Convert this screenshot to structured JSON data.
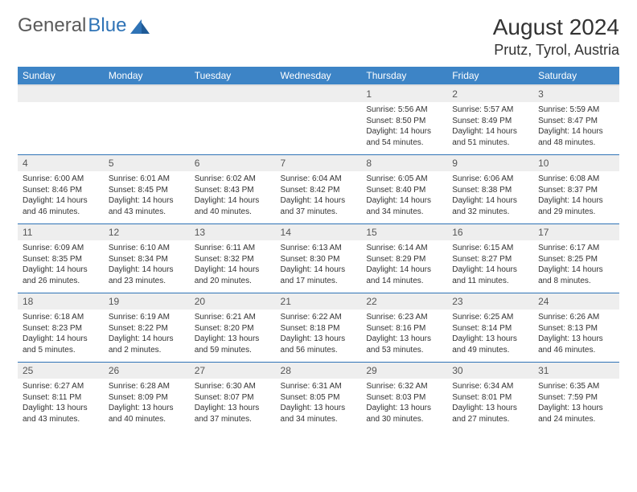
{
  "brand": {
    "part1": "General",
    "part2": "Blue"
  },
  "title": "August 2024",
  "location": "Prutz, Tyrol, Austria",
  "colors": {
    "header_bg": "#3d84c6",
    "header_fg": "#ffffff",
    "rule": "#2f73b6",
    "daynum_bg": "#eeeeee",
    "text": "#333333",
    "logo_gray": "#5a5a5a",
    "logo_blue": "#2f73b6"
  },
  "weekdays": [
    "Sunday",
    "Monday",
    "Tuesday",
    "Wednesday",
    "Thursday",
    "Friday",
    "Saturday"
  ],
  "weeks": [
    [
      {
        "n": "",
        "sr": "",
        "ss": "",
        "dl": ""
      },
      {
        "n": "",
        "sr": "",
        "ss": "",
        "dl": ""
      },
      {
        "n": "",
        "sr": "",
        "ss": "",
        "dl": ""
      },
      {
        "n": "",
        "sr": "",
        "ss": "",
        "dl": ""
      },
      {
        "n": "1",
        "sr": "Sunrise: 5:56 AM",
        "ss": "Sunset: 8:50 PM",
        "dl": "Daylight: 14 hours and 54 minutes."
      },
      {
        "n": "2",
        "sr": "Sunrise: 5:57 AM",
        "ss": "Sunset: 8:49 PM",
        "dl": "Daylight: 14 hours and 51 minutes."
      },
      {
        "n": "3",
        "sr": "Sunrise: 5:59 AM",
        "ss": "Sunset: 8:47 PM",
        "dl": "Daylight: 14 hours and 48 minutes."
      }
    ],
    [
      {
        "n": "4",
        "sr": "Sunrise: 6:00 AM",
        "ss": "Sunset: 8:46 PM",
        "dl": "Daylight: 14 hours and 46 minutes."
      },
      {
        "n": "5",
        "sr": "Sunrise: 6:01 AM",
        "ss": "Sunset: 8:45 PM",
        "dl": "Daylight: 14 hours and 43 minutes."
      },
      {
        "n": "6",
        "sr": "Sunrise: 6:02 AM",
        "ss": "Sunset: 8:43 PM",
        "dl": "Daylight: 14 hours and 40 minutes."
      },
      {
        "n": "7",
        "sr": "Sunrise: 6:04 AM",
        "ss": "Sunset: 8:42 PM",
        "dl": "Daylight: 14 hours and 37 minutes."
      },
      {
        "n": "8",
        "sr": "Sunrise: 6:05 AM",
        "ss": "Sunset: 8:40 PM",
        "dl": "Daylight: 14 hours and 34 minutes."
      },
      {
        "n": "9",
        "sr": "Sunrise: 6:06 AM",
        "ss": "Sunset: 8:38 PM",
        "dl": "Daylight: 14 hours and 32 minutes."
      },
      {
        "n": "10",
        "sr": "Sunrise: 6:08 AM",
        "ss": "Sunset: 8:37 PM",
        "dl": "Daylight: 14 hours and 29 minutes."
      }
    ],
    [
      {
        "n": "11",
        "sr": "Sunrise: 6:09 AM",
        "ss": "Sunset: 8:35 PM",
        "dl": "Daylight: 14 hours and 26 minutes."
      },
      {
        "n": "12",
        "sr": "Sunrise: 6:10 AM",
        "ss": "Sunset: 8:34 PM",
        "dl": "Daylight: 14 hours and 23 minutes."
      },
      {
        "n": "13",
        "sr": "Sunrise: 6:11 AM",
        "ss": "Sunset: 8:32 PM",
        "dl": "Daylight: 14 hours and 20 minutes."
      },
      {
        "n": "14",
        "sr": "Sunrise: 6:13 AM",
        "ss": "Sunset: 8:30 PM",
        "dl": "Daylight: 14 hours and 17 minutes."
      },
      {
        "n": "15",
        "sr": "Sunrise: 6:14 AM",
        "ss": "Sunset: 8:29 PM",
        "dl": "Daylight: 14 hours and 14 minutes."
      },
      {
        "n": "16",
        "sr": "Sunrise: 6:15 AM",
        "ss": "Sunset: 8:27 PM",
        "dl": "Daylight: 14 hours and 11 minutes."
      },
      {
        "n": "17",
        "sr": "Sunrise: 6:17 AM",
        "ss": "Sunset: 8:25 PM",
        "dl": "Daylight: 14 hours and 8 minutes."
      }
    ],
    [
      {
        "n": "18",
        "sr": "Sunrise: 6:18 AM",
        "ss": "Sunset: 8:23 PM",
        "dl": "Daylight: 14 hours and 5 minutes."
      },
      {
        "n": "19",
        "sr": "Sunrise: 6:19 AM",
        "ss": "Sunset: 8:22 PM",
        "dl": "Daylight: 14 hours and 2 minutes."
      },
      {
        "n": "20",
        "sr": "Sunrise: 6:21 AM",
        "ss": "Sunset: 8:20 PM",
        "dl": "Daylight: 13 hours and 59 minutes."
      },
      {
        "n": "21",
        "sr": "Sunrise: 6:22 AM",
        "ss": "Sunset: 8:18 PM",
        "dl": "Daylight: 13 hours and 56 minutes."
      },
      {
        "n": "22",
        "sr": "Sunrise: 6:23 AM",
        "ss": "Sunset: 8:16 PM",
        "dl": "Daylight: 13 hours and 53 minutes."
      },
      {
        "n": "23",
        "sr": "Sunrise: 6:25 AM",
        "ss": "Sunset: 8:14 PM",
        "dl": "Daylight: 13 hours and 49 minutes."
      },
      {
        "n": "24",
        "sr": "Sunrise: 6:26 AM",
        "ss": "Sunset: 8:13 PM",
        "dl": "Daylight: 13 hours and 46 minutes."
      }
    ],
    [
      {
        "n": "25",
        "sr": "Sunrise: 6:27 AM",
        "ss": "Sunset: 8:11 PM",
        "dl": "Daylight: 13 hours and 43 minutes."
      },
      {
        "n": "26",
        "sr": "Sunrise: 6:28 AM",
        "ss": "Sunset: 8:09 PM",
        "dl": "Daylight: 13 hours and 40 minutes."
      },
      {
        "n": "27",
        "sr": "Sunrise: 6:30 AM",
        "ss": "Sunset: 8:07 PM",
        "dl": "Daylight: 13 hours and 37 minutes."
      },
      {
        "n": "28",
        "sr": "Sunrise: 6:31 AM",
        "ss": "Sunset: 8:05 PM",
        "dl": "Daylight: 13 hours and 34 minutes."
      },
      {
        "n": "29",
        "sr": "Sunrise: 6:32 AM",
        "ss": "Sunset: 8:03 PM",
        "dl": "Daylight: 13 hours and 30 minutes."
      },
      {
        "n": "30",
        "sr": "Sunrise: 6:34 AM",
        "ss": "Sunset: 8:01 PM",
        "dl": "Daylight: 13 hours and 27 minutes."
      },
      {
        "n": "31",
        "sr": "Sunrise: 6:35 AM",
        "ss": "Sunset: 7:59 PM",
        "dl": "Daylight: 13 hours and 24 minutes."
      }
    ]
  ]
}
